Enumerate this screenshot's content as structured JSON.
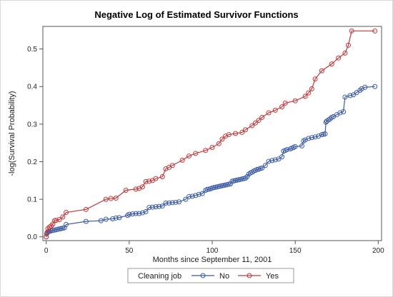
{
  "chart_data": {
    "type": "line",
    "title": "Negative Log of Estimated Survivor Functions",
    "xlabel": "Months since September 11, 2001",
    "ylabel": "-log(Survival Probability)",
    "xlim": [
      -2,
      202
    ],
    "ylim": [
      -0.01,
      0.56
    ],
    "xticks": [
      0,
      50,
      100,
      150,
      200
    ],
    "yticks": [
      0.0,
      0.1,
      0.2,
      0.3,
      0.4,
      0.5
    ],
    "xtick_labels": [
      "0",
      "50",
      "100",
      "150",
      "200"
    ],
    "ytick_labels": [
      "0.0",
      "0.1",
      "0.2",
      "0.3",
      "0.4",
      "0.5"
    ],
    "grid": false,
    "legend": {
      "position": "bottom",
      "title": "Cleaning job"
    },
    "series": [
      {
        "name": "No",
        "color": "#3b5ba5",
        "marker": "circle",
        "points": [
          [
            0,
            0.0
          ],
          [
            0.3,
            0.008
          ],
          [
            0.6,
            0.011
          ],
          [
            1,
            0.013
          ],
          [
            1.5,
            0.014
          ],
          [
            2,
            0.015
          ],
          [
            3,
            0.016
          ],
          [
            4,
            0.017
          ],
          [
            5,
            0.018
          ],
          [
            6,
            0.019
          ],
          [
            7,
            0.02
          ],
          [
            8,
            0.021
          ],
          [
            9,
            0.022
          ],
          [
            10,
            0.023
          ],
          [
            11,
            0.024
          ],
          [
            12,
            0.033
          ],
          [
            24,
            0.041
          ],
          [
            33,
            0.043
          ],
          [
            36,
            0.047
          ],
          [
            40,
            0.048
          ],
          [
            42,
            0.05
          ],
          [
            44,
            0.051
          ],
          [
            49,
            0.057
          ],
          [
            50,
            0.06
          ],
          [
            52,
            0.061
          ],
          [
            54,
            0.062
          ],
          [
            56,
            0.062
          ],
          [
            58,
            0.064
          ],
          [
            60,
            0.067
          ],
          [
            62,
            0.078
          ],
          [
            64,
            0.079
          ],
          [
            66,
            0.08
          ],
          [
            68,
            0.081
          ],
          [
            70,
            0.082
          ],
          [
            72,
            0.09
          ],
          [
            74,
            0.09
          ],
          [
            76,
            0.091
          ],
          [
            78,
            0.092
          ],
          [
            80,
            0.093
          ],
          [
            84,
            0.1
          ],
          [
            86,
            0.107
          ],
          [
            88,
            0.108
          ],
          [
            90,
            0.11
          ],
          [
            92,
            0.113
          ],
          [
            94,
            0.115
          ],
          [
            96,
            0.124
          ],
          [
            97,
            0.126
          ],
          [
            98,
            0.127
          ],
          [
            99,
            0.128
          ],
          [
            100,
            0.13
          ],
          [
            101,
            0.131
          ],
          [
            102,
            0.132
          ],
          [
            103,
            0.133
          ],
          [
            104,
            0.134
          ],
          [
            105,
            0.135
          ],
          [
            106,
            0.136
          ],
          [
            107,
            0.137
          ],
          [
            108,
            0.138
          ],
          [
            109,
            0.139
          ],
          [
            110,
            0.14
          ],
          [
            111,
            0.141
          ],
          [
            112,
            0.148
          ],
          [
            113,
            0.149
          ],
          [
            114,
            0.15
          ],
          [
            115,
            0.151
          ],
          [
            116,
            0.152
          ],
          [
            117,
            0.153
          ],
          [
            118,
            0.154
          ],
          [
            119,
            0.155
          ],
          [
            120,
            0.156
          ],
          [
            121,
            0.16
          ],
          [
            122,
            0.167
          ],
          [
            123,
            0.17
          ],
          [
            124,
            0.172
          ],
          [
            125,
            0.175
          ],
          [
            126,
            0.177
          ],
          [
            127,
            0.179
          ],
          [
            128,
            0.18
          ],
          [
            129,
            0.182
          ],
          [
            130,
            0.183
          ],
          [
            132,
            0.19
          ],
          [
            134,
            0.201
          ],
          [
            136,
            0.203
          ],
          [
            138,
            0.205
          ],
          [
            140,
            0.207
          ],
          [
            142,
            0.213
          ],
          [
            143,
            0.228
          ],
          [
            144,
            0.23
          ],
          [
            145,
            0.232
          ],
          [
            147,
            0.234
          ],
          [
            148,
            0.236
          ],
          [
            149,
            0.238
          ],
          [
            150,
            0.24
          ],
          [
            154,
            0.242
          ],
          [
            155,
            0.255
          ],
          [
            156,
            0.258
          ],
          [
            158,
            0.262
          ],
          [
            160,
            0.264
          ],
          [
            162,
            0.266
          ],
          [
            164,
            0.268
          ],
          [
            166,
            0.272
          ],
          [
            167,
            0.273
          ],
          [
            168,
            0.274
          ],
          [
            168.5,
            0.305
          ],
          [
            169,
            0.308
          ],
          [
            170,
            0.311
          ],
          [
            171,
            0.314
          ],
          [
            172,
            0.318
          ],
          [
            173,
            0.32
          ],
          [
            175,
            0.325
          ],
          [
            177,
            0.33
          ],
          [
            179,
            0.333
          ],
          [
            180,
            0.372
          ],
          [
            183,
            0.376
          ],
          [
            185,
            0.378
          ],
          [
            187,
            0.384
          ],
          [
            189,
            0.39
          ],
          [
            190,
            0.394
          ],
          [
            192,
            0.398
          ],
          [
            198,
            0.4
          ]
        ]
      },
      {
        "name": "Yes",
        "color": "#c0393b",
        "marker": "circle",
        "points": [
          [
            0,
            0.0
          ],
          [
            0.5,
            0.011
          ],
          [
            1,
            0.022
          ],
          [
            2,
            0.026
          ],
          [
            3,
            0.029
          ],
          [
            4,
            0.034
          ],
          [
            5,
            0.043
          ],
          [
            6,
            0.044
          ],
          [
            8,
            0.046
          ],
          [
            10,
            0.053
          ],
          [
            12,
            0.065
          ],
          [
            24,
            0.073
          ],
          [
            36,
            0.1
          ],
          [
            39,
            0.102
          ],
          [
            42,
            0.103
          ],
          [
            48,
            0.124
          ],
          [
            54,
            0.127
          ],
          [
            56,
            0.129
          ],
          [
            58,
            0.133
          ],
          [
            60,
            0.147
          ],
          [
            62,
            0.148
          ],
          [
            64,
            0.15
          ],
          [
            66,
            0.155
          ],
          [
            70,
            0.16
          ],
          [
            72,
            0.181
          ],
          [
            74,
            0.185
          ],
          [
            76,
            0.19
          ],
          [
            82,
            0.204
          ],
          [
            86,
            0.215
          ],
          [
            90,
            0.222
          ],
          [
            96,
            0.23
          ],
          [
            100,
            0.238
          ],
          [
            104,
            0.248
          ],
          [
            106,
            0.26
          ],
          [
            108,
            0.268
          ],
          [
            110,
            0.272
          ],
          [
            114,
            0.275
          ],
          [
            118,
            0.278
          ],
          [
            120,
            0.285
          ],
          [
            124,
            0.296
          ],
          [
            126,
            0.303
          ],
          [
            128,
            0.31
          ],
          [
            130,
            0.318
          ],
          [
            134,
            0.33
          ],
          [
            138,
            0.337
          ],
          [
            142,
            0.346
          ],
          [
            144,
            0.356
          ],
          [
            150,
            0.362
          ],
          [
            156,
            0.374
          ],
          [
            158,
            0.383
          ],
          [
            160,
            0.394
          ],
          [
            162,
            0.42
          ],
          [
            166,
            0.442
          ],
          [
            172,
            0.46
          ],
          [
            176,
            0.476
          ],
          [
            180,
            0.489
          ],
          [
            182,
            0.51
          ],
          [
            184,
            0.548
          ],
          [
            198,
            0.548
          ]
        ]
      }
    ]
  }
}
